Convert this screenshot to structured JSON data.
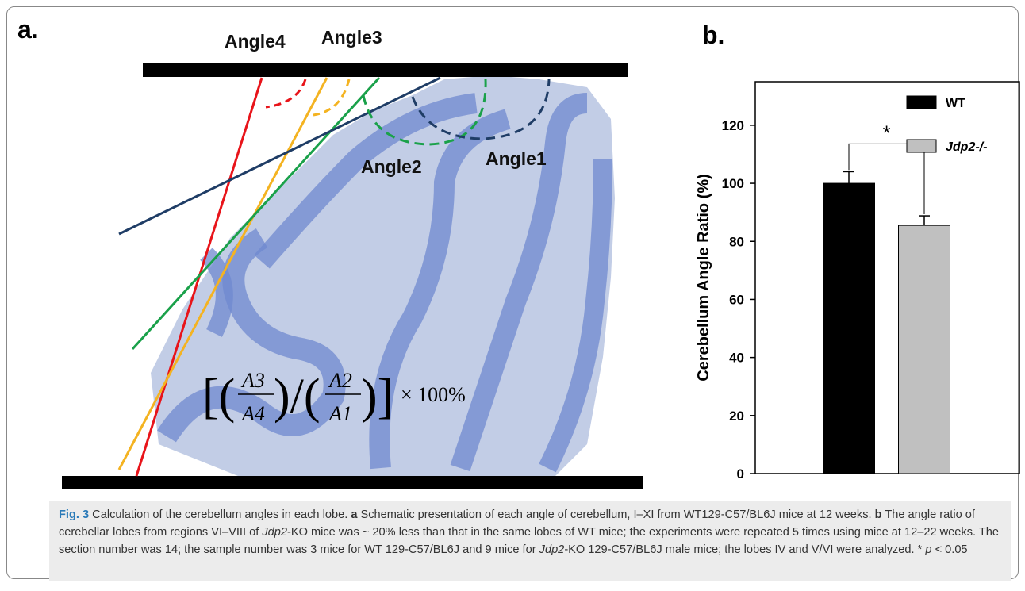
{
  "panel_a": {
    "label": "a.",
    "angles": [
      "Angle4",
      "Angle3",
      "Angle2",
      "Angle1"
    ],
    "formula": {
      "numerator_top": "A3",
      "numerator_bottom": "A4",
      "denominator_top": "A2",
      "denominator_bottom": "A1",
      "factor": "× 100%"
    }
  },
  "chart_data": {
    "type": "bar",
    "label": "b.",
    "ylabel": "Cerebellum Angle Ratio (%)",
    "categories": [
      null
    ],
    "series": [
      {
        "name": "WT",
        "color": "#000000",
        "values": [
          100
        ],
        "errors": [
          4
        ]
      },
      {
        "name": "Jdp2-/-",
        "color": "#c0c0c0",
        "values": [
          85.5
        ],
        "errors": [
          3.3
        ]
      }
    ],
    "ylim": [
      0,
      135
    ],
    "yticks": [
      0,
      20,
      40,
      60,
      80,
      100,
      120
    ],
    "annotation": "*",
    "legend": "top-right"
  },
  "caption": {
    "label": "Fig. 3",
    "parts": [
      "Calculation of the cerebellum angles in each lobe. ",
      "a",
      " Schematic presentation of each angle of cerebellum, I–XI from WT129-C57/BL6J mice at 12 weeks. ",
      "b",
      " The angle ratio of cerebellar lobes from regions VI–VIII of ",
      "Jdp2",
      "-KO mice was ~ 20% less than that in the same lobes of WT mice; the experiments were repeated 5 times using mice at 12–22 weeks. The section number was 14; the sample number was 3 mice for WT 129-C57/BL6J and 9 mice for ",
      "Jdp2",
      "-KO 129-C57/BL6J male mice; the lobes IV and V/VI were analyzed. * ",
      "p",
      " < 0.05"
    ]
  }
}
